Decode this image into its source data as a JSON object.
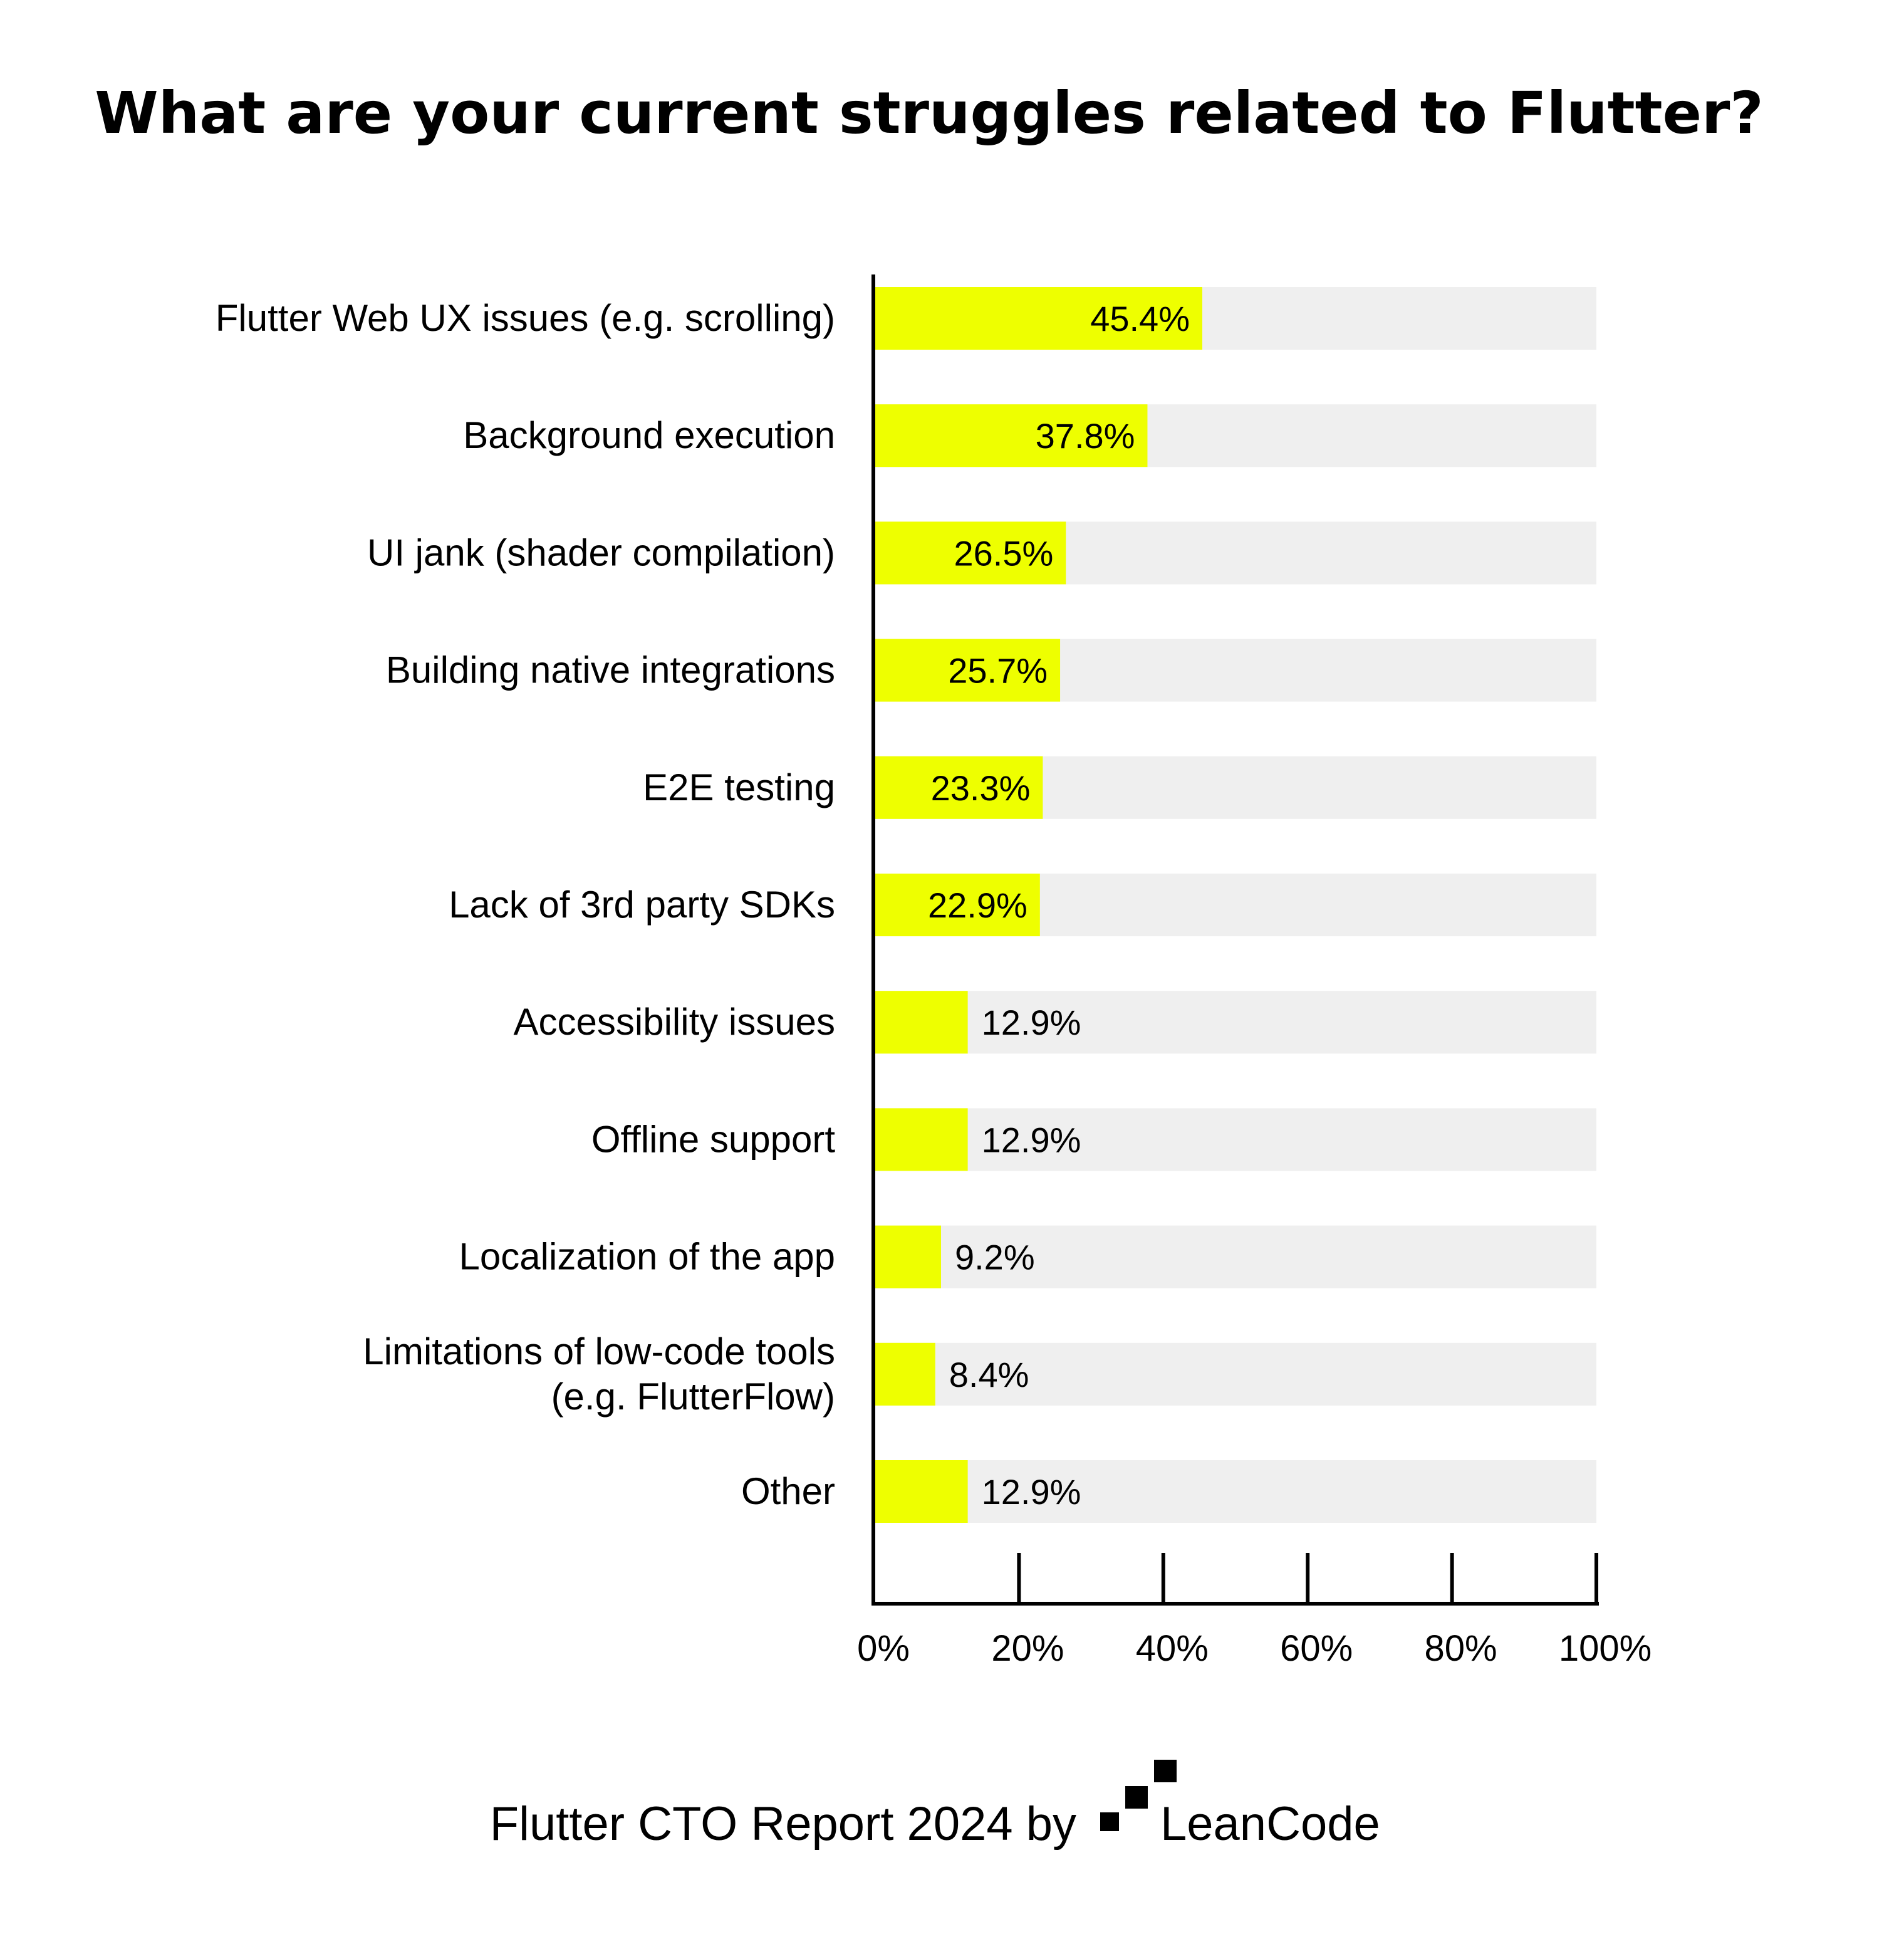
{
  "chart_data": {
    "type": "bar",
    "orientation": "horizontal",
    "title": "What are your current struggles related to Flutter?",
    "categories": [
      [
        "Flutter Web UX issues (e.g. scrolling)"
      ],
      [
        "Background execution"
      ],
      [
        "UI jank (shader compilation)"
      ],
      [
        "Building native integrations"
      ],
      [
        "E2E testing"
      ],
      [
        "Lack of 3rd party SDKs"
      ],
      [
        "Accessibility issues"
      ],
      [
        "Offline support"
      ],
      [
        "Localization of the app"
      ],
      [
        "Limitations of low-code tools",
        "(e.g. FlutterFlow)"
      ],
      [
        "Other"
      ]
    ],
    "values": [
      45.4,
      37.8,
      26.5,
      25.7,
      23.3,
      22.9,
      12.9,
      12.9,
      9.2,
      8.4,
      12.9
    ],
    "value_labels": [
      "45.4%",
      "37.8%",
      "26.5%",
      "25.7%",
      "23.3%",
      "22.9%",
      "12.9%",
      "12.9%",
      "9.2%",
      "8.4%",
      "12.9%"
    ],
    "xlim": [
      0,
      100
    ],
    "xticks": [
      0,
      20,
      40,
      60,
      80,
      100
    ],
    "xtick_labels": [
      "0%",
      "20%",
      "40%",
      "60%",
      "80%",
      "100%"
    ],
    "colors": {
      "bar": "#EEFF00",
      "track": "#EFEFEF",
      "axis": "#000000"
    },
    "grid": false
  },
  "footer": {
    "text": "Flutter CTO Report 2024 by",
    "brand": "LeanCode",
    "logo_icon": "leancode-steps-icon"
  }
}
